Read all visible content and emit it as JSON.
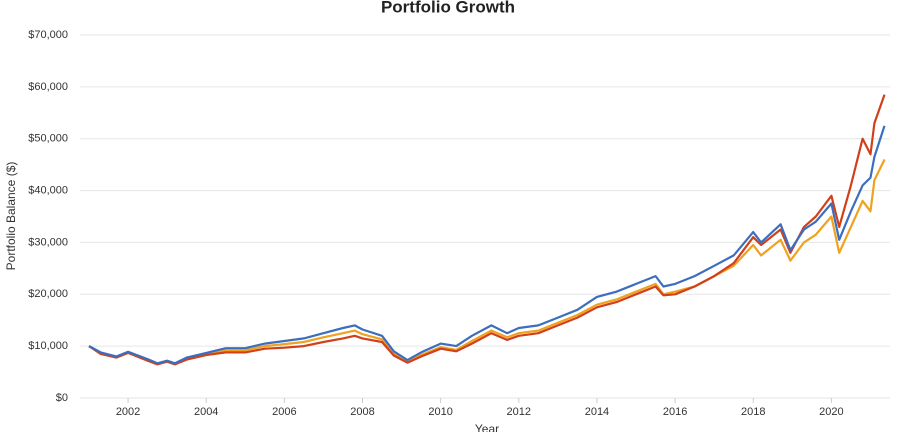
{
  "chart_data": {
    "type": "line",
    "title": "Portfolio Growth",
    "xlabel": "Year",
    "ylabel": "Portfolio Balance ($)",
    "x": [
      2001.0,
      2001.3,
      2001.7,
      2002.0,
      2002.5,
      2002.75,
      2003.0,
      2003.2,
      2003.5,
      2004.0,
      2004.5,
      2005.0,
      2005.5,
      2006.0,
      2006.5,
      2007.0,
      2007.5,
      2007.8,
      2008.0,
      2008.5,
      2008.8,
      2009.15,
      2009.5,
      2010.0,
      2010.4,
      2010.8,
      2011.3,
      2011.7,
      2012.0,
      2012.5,
      2013.0,
      2013.5,
      2014.0,
      2014.5,
      2015.0,
      2015.5,
      2015.7,
      2016.0,
      2016.5,
      2017.0,
      2017.5,
      2018.0,
      2018.2,
      2018.7,
      2018.95,
      2019.3,
      2019.6,
      2020.0,
      2020.2,
      2020.5,
      2020.8,
      2021.0,
      2021.1,
      2021.36
    ],
    "series": [
      {
        "color": "#f0a11e",
        "values": [
          10000,
          8700,
          7900,
          8800,
          7300,
          6500,
          7100,
          6500,
          7600,
          8500,
          9200,
          9200,
          10000,
          10400,
          10800,
          11700,
          12500,
          13000,
          12300,
          11300,
          8500,
          6900,
          8300,
          9800,
          9300,
          11000,
          13000,
          11700,
          12500,
          13000,
          14500,
          16000,
          18000,
          19000,
          20500,
          22000,
          20000,
          20500,
          21500,
          23500,
          25500,
          29500,
          27500,
          30500,
          26500,
          30000,
          31500,
          35000,
          28000,
          33000,
          38000,
          36000,
          42000,
          46000
        ]
      },
      {
        "color": "#d0401b",
        "values": [
          10000,
          8500,
          7800,
          8700,
          7200,
          6500,
          7000,
          6500,
          7400,
          8300,
          8800,
          8800,
          9500,
          9700,
          10000,
          10800,
          11500,
          12000,
          11500,
          10800,
          8200,
          6800,
          8000,
          9500,
          9000,
          10500,
          12500,
          11200,
          12000,
          12500,
          14000,
          15500,
          17500,
          18500,
          20000,
          21500,
          19800,
          20000,
          21500,
          23500,
          26000,
          31000,
          29500,
          32500,
          28000,
          33000,
          35000,
          39000,
          33000,
          41000,
          50000,
          47000,
          53000,
          58500
        ]
      },
      {
        "color": "#3c6ebf",
        "values": [
          10000,
          8800,
          8000,
          8900,
          7500,
          6700,
          7200,
          6700,
          7800,
          8700,
          9600,
          9600,
          10500,
          11000,
          11500,
          12500,
          13500,
          14000,
          13200,
          12000,
          9000,
          7300,
          8800,
          10500,
          10000,
          12000,
          14000,
          12500,
          13500,
          14000,
          15500,
          17000,
          19500,
          20500,
          22000,
          23500,
          21500,
          22000,
          23500,
          25500,
          27500,
          32000,
          30000,
          33500,
          28500,
          32500,
          34000,
          37500,
          30500,
          36000,
          41000,
          42500,
          46500,
          52500
        ]
      }
    ],
    "xlim": [
      2000.77,
      2021.5
    ],
    "xticks": [
      2002,
      2004,
      2006,
      2008,
      2010,
      2012,
      2014,
      2016,
      2018,
      2020
    ],
    "ylim": [
      0,
      70000
    ],
    "yticks": [
      {
        "value": 0,
        "label": "$0"
      },
      {
        "value": 10000,
        "label": "$10,000"
      },
      {
        "value": 20000,
        "label": "$20,000"
      },
      {
        "value": 30000,
        "label": "$30,000"
      },
      {
        "value": 40000,
        "label": "$40,000"
      },
      {
        "value": 50000,
        "label": "$50,000"
      },
      {
        "value": 60000,
        "label": "$60,000"
      },
      {
        "value": 70000,
        "label": "$70,000"
      }
    ],
    "grid": true
  }
}
